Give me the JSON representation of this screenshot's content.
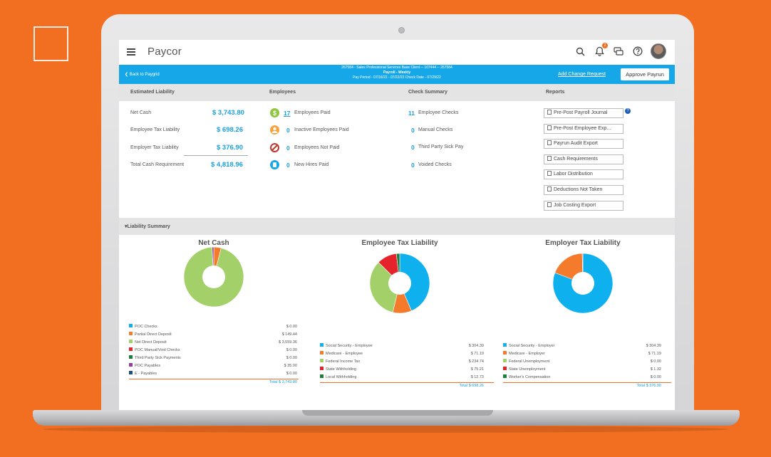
{
  "app": {
    "logo": "Paycor",
    "notification_count": "2"
  },
  "header": {
    "back_label": "Back to Paygrid",
    "run_line1": "267584 - Sales Professional Services Base Client -- 107444 -- 267584",
    "run_line2": "Payroll - Weekly",
    "run_line3": "Pay Period - 07/16/22 - 07/22/22   Check Date - 07/29/22",
    "add_change_request": "Add Change Request",
    "approve_payrun": "Approve Payrun"
  },
  "sections": {
    "estimated_liability": "Estimated Liability",
    "employees": "Employees",
    "check_summary": "Check Summary",
    "reports": "Reports"
  },
  "liability": [
    {
      "label": "Net Cash",
      "value": "$ 3,743.80"
    },
    {
      "label": "Employee Tax Liability",
      "value": "$ 698.26"
    },
    {
      "label": "Employer Tax Liability",
      "value": "$ 376.90"
    },
    {
      "label": "Total Cash Requirement",
      "value": "$ 4,818.96"
    }
  ],
  "employees": [
    {
      "count": "17",
      "label": "Employees Paid",
      "icon": "dollar-icon",
      "color": "#8dc63f"
    },
    {
      "count": "0",
      "label": "Inactive Employees Paid",
      "icon": "person-icon",
      "color": "#f7a23b"
    },
    {
      "count": "0",
      "label": "Employees Not Paid",
      "icon": "no-icon",
      "color": "#c0392b"
    },
    {
      "count": "0",
      "label": "New Hires Paid",
      "icon": "new-hire-icon",
      "color": "#16a7e8"
    }
  ],
  "checks": [
    {
      "count": "11",
      "label": "Employee Checks"
    },
    {
      "count": "0",
      "label": "Manual Checks"
    },
    {
      "count": "0",
      "label": "Third Party Sick Pay"
    },
    {
      "count": "0",
      "label": "Voided Checks"
    }
  ],
  "reports": [
    "Pre-Post Payroll Journal",
    "Pre-Post Employee Exp...",
    "Payrun Audit Export",
    "Cash Requirements",
    "Labor Distribution",
    "Deductions Not Taken",
    "Job Costing Export"
  ],
  "liability_summary_label": "Liability Summary",
  "colors": {
    "blue": "#0fb0ee",
    "orange": "#f47a2c",
    "green": "#a4d06a",
    "red": "#e5232b",
    "dark_green": "#1b7f3b",
    "purple": "#8e3fa0",
    "navy": "#1d4f7a"
  },
  "chart_data": [
    {
      "type": "pie",
      "title": "Net Cash",
      "categories": [
        "POC Checks",
        "Partial Direct Deposit",
        "Net Direct Deposit",
        "POC Manual/Void Checks",
        "Third Party Sick Payments",
        "POC Payables",
        "E - Payables"
      ],
      "values": [
        0.0,
        149.44,
        3559.36,
        0.0,
        0.0,
        35.0,
        0.0
      ],
      "labels": [
        "$ 0.00",
        "$ 149.44",
        "$ 3,559.36",
        "$ 0.00",
        "$ 0.00",
        "$ 35.00",
        "$ 0.00"
      ],
      "colors": [
        "#0fb0ee",
        "#f47a2c",
        "#a4d06a",
        "#e5232b",
        "#1b7f3b",
        "#8e3fa0",
        "#1d4f7a"
      ],
      "total": "Total $ 3,743.80"
    },
    {
      "type": "pie",
      "title": "Employee Tax Liability",
      "categories": [
        "Social Security - Employee",
        "Medicare - Employee",
        "Federal Income Tax",
        "State Withholding",
        "Local Withholding"
      ],
      "values": [
        304.39,
        71.19,
        234.74,
        75.21,
        12.73
      ],
      "labels": [
        "$ 304.39",
        "$ 71.19",
        "$ 234.74",
        "$ 75.21",
        "$ 12.73"
      ],
      "colors": [
        "#0fb0ee",
        "#f47a2c",
        "#a4d06a",
        "#e5232b",
        "#1b7f3b"
      ],
      "total": "Total $ 698.26"
    },
    {
      "type": "pie",
      "title": "Employer Tax Liability",
      "categories": [
        "Social Security - Employer",
        "Medicare - Employer",
        "Federal Unemployment",
        "State Unemployment",
        "Worker's Compensation"
      ],
      "values": [
        304.39,
        71.19,
        0.0,
        1.32,
        0.0
      ],
      "labels": [
        "$ 304.39",
        "$ 71.19",
        "$ 0.00",
        "$ 1.32",
        "$ 0.00"
      ],
      "colors": [
        "#0fb0ee",
        "#f47a2c",
        "#a4d06a",
        "#e5232b",
        "#1b7f3b"
      ],
      "total": "Total $ 376.90"
    }
  ]
}
